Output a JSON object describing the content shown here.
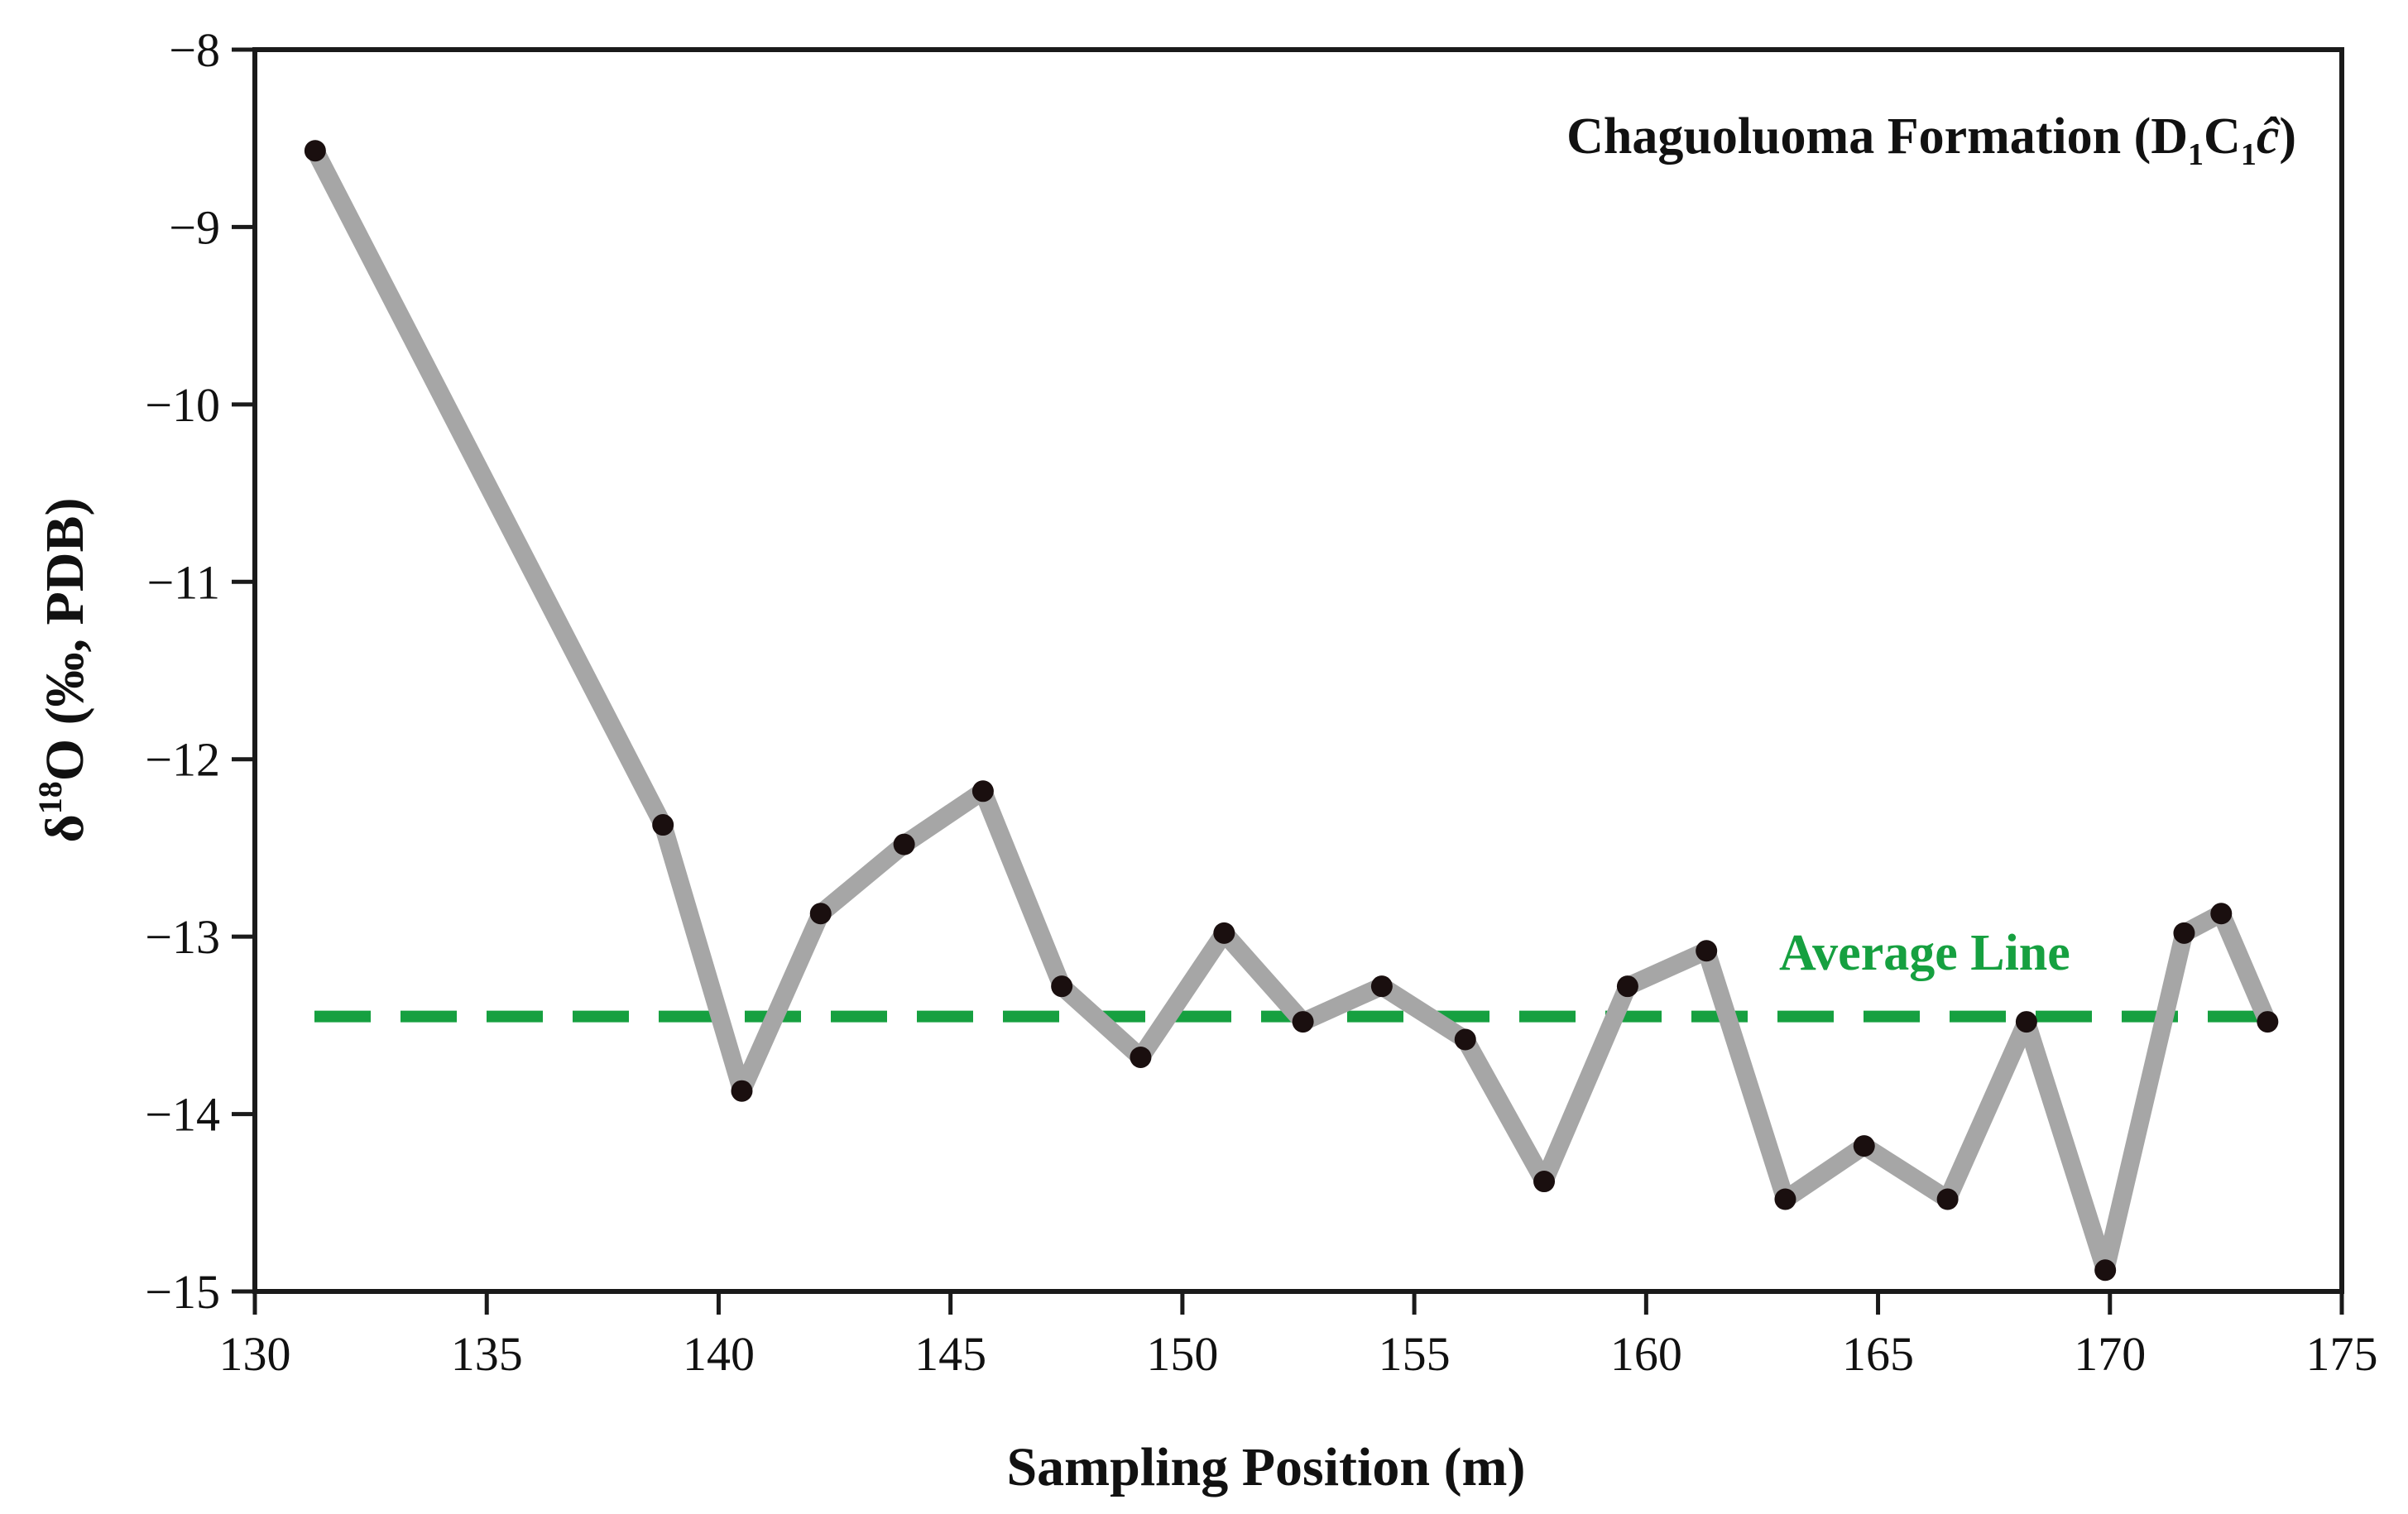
{
  "chart_data": {
    "type": "line",
    "title": {
      "formation": "Chaguoluoma  Formation",
      "paren_open": "(",
      "D": "D",
      "D_sub": "1",
      "C": "C",
      "C_sub": "1",
      "c_hat": "ĉ",
      "paren_close": ")"
    },
    "xlabel": "Sampling Position (m)",
    "ylabel": {
      "delta": "δ",
      "sup": "18",
      "rest": "O (‰, PDB)"
    },
    "xlim": [
      130,
      175
    ],
    "ylim": [
      -15,
      -8
    ],
    "xticks": [
      130,
      135,
      140,
      145,
      150,
      155,
      160,
      165,
      170,
      175
    ],
    "yticks": [
      -8,
      -9,
      -10,
      -11,
      -12,
      -13,
      -14,
      -15
    ],
    "xtick_labels": [
      "130",
      "135",
      "140",
      "145",
      "150",
      "155",
      "160",
      "165",
      "170",
      "175"
    ],
    "ytick_labels": [
      "−8",
      "−9",
      "−10",
      "−11",
      "−12",
      "−13",
      "−14",
      "−15"
    ],
    "series": [
      {
        "name": "δ18O",
        "x": [
          131.3,
          138.8,
          140.5,
          142.2,
          144.0,
          145.7,
          147.4,
          149.1,
          150.9,
          152.6,
          154.3,
          156.1,
          157.8,
          159.6,
          161.3,
          163.0,
          164.7,
          166.5,
          168.2,
          169.9,
          171.6,
          172.4,
          173.4
        ],
        "y": [
          -8.57,
          -12.37,
          -13.87,
          -12.87,
          -12.48,
          -12.18,
          -13.28,
          -13.68,
          -12.98,
          -13.48,
          -13.28,
          -13.58,
          -14.38,
          -13.28,
          -13.08,
          -14.48,
          -14.18,
          -14.48,
          -13.48,
          -14.88,
          -12.98,
          -12.87,
          -13.48
        ]
      }
    ],
    "average_line": {
      "label": "Average Line",
      "y": -13.45
    },
    "colors": {
      "line": "#a6a6a6",
      "marker": "#1a0f0f",
      "average": "#16a040",
      "axis": "#1a1a1a"
    },
    "grid": false
  }
}
